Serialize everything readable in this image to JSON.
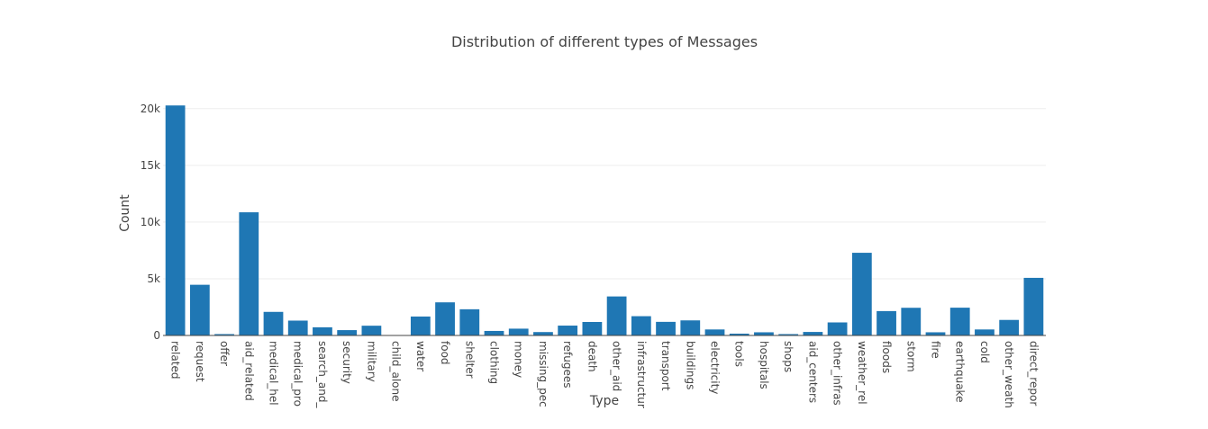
{
  "chart_data": {
    "type": "bar",
    "title": "Distribution of different types of Messages",
    "xlabel": "Type",
    "ylabel": "Count",
    "ylim": [
      0,
      20300
    ],
    "yticks": [
      0,
      5000,
      10000,
      15000,
      20000
    ],
    "ytick_labels": [
      "0",
      "5k",
      "10k",
      "15k",
      "20k"
    ],
    "grid": true,
    "bar_color": "#1f77b4",
    "categories": [
      "related",
      "request",
      "offer",
      "aid_related",
      "medical_hel",
      "medical_pro",
      "search_and_",
      "security",
      "military",
      "child_alone",
      "water",
      "food",
      "shelter",
      "clothing",
      "money",
      "missing_pec",
      "refugees",
      "death",
      "other_aid",
      "infrastructur",
      "transport",
      "buildings",
      "electricity",
      "tools",
      "hospitals",
      "shops",
      "aid_centers",
      "other_infras",
      "weather_rel",
      "floods",
      "storm",
      "fire",
      "earthquake",
      "cold",
      "other_weath",
      "direct_repor"
    ],
    "values": [
      20280,
      4470,
      120,
      10860,
      2080,
      1310,
      720,
      470,
      860,
      0,
      1670,
      2920,
      2310,
      400,
      600,
      300,
      870,
      1190,
      3440,
      1700,
      1200,
      1330,
      530,
      160,
      280,
      120,
      310,
      1150,
      7290,
      2150,
      2440,
      280,
      2450,
      530,
      1370,
      5080
    ]
  }
}
